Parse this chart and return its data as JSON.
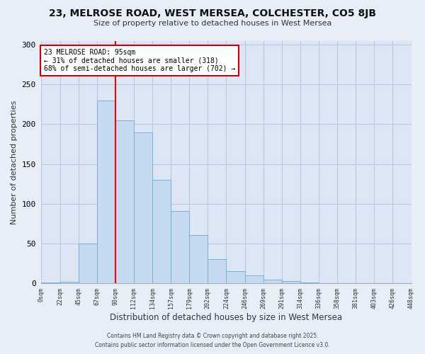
{
  "title": "23, MELROSE ROAD, WEST MERSEA, COLCHESTER, CO5 8JB",
  "subtitle": "Size of property relative to detached houses in West Mersea",
  "xlabel": "Distribution of detached houses by size in West Mersea",
  "ylabel": "Number of detached properties",
  "bin_labels": [
    "0sqm",
    "22sqm",
    "45sqm",
    "67sqm",
    "90sqm",
    "112sqm",
    "134sqm",
    "157sqm",
    "179sqm",
    "202sqm",
    "224sqm",
    "246sqm",
    "269sqm",
    "291sqm",
    "314sqm",
    "336sqm",
    "358sqm",
    "381sqm",
    "403sqm",
    "426sqm",
    "448sqm"
  ],
  "bar_heights": [
    1,
    2,
    50,
    230,
    205,
    190,
    130,
    91,
    61,
    30,
    15,
    10,
    5,
    3,
    1,
    0,
    0,
    0,
    0,
    0
  ],
  "bar_color": "#c5d9f0",
  "bar_edge_color": "#7bafd4",
  "vline_x": 4,
  "vline_color": "red",
  "annotation_text": "23 MELROSE ROAD: 95sqm\n← 31% of detached houses are smaller (318)\n68% of semi-detached houses are larger (702) →",
  "annotation_box_color": "white",
  "annotation_box_edge": "#cc0000",
  "ylim": [
    0,
    305
  ],
  "yticks": [
    0,
    50,
    100,
    150,
    200,
    250,
    300
  ],
  "footer_line1": "Contains HM Land Registry data © Crown copyright and database right 2025.",
  "footer_line2": "Contains public sector information licensed under the Open Government Licence v3.0.",
  "bg_color": "#e8eef8",
  "plot_bg_color": "#dce6f5",
  "grid_color": "#b8c8e0"
}
